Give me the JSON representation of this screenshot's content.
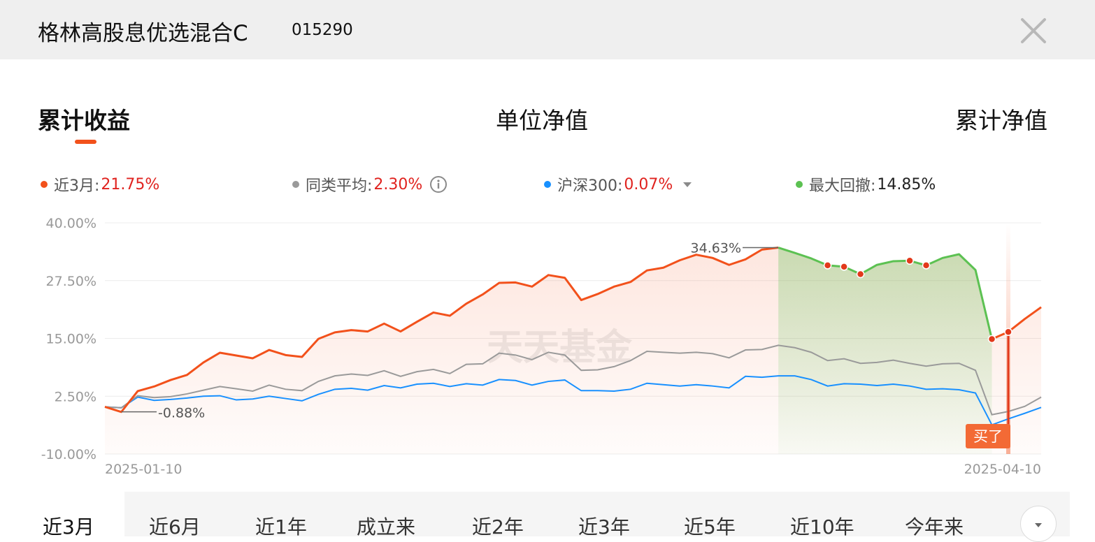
{
  "header": {
    "fund_name": "格林高股息优选混合C",
    "fund_code": "015290",
    "close_icon": "close-icon"
  },
  "tabs": [
    {
      "label": "累计收益",
      "active": true
    },
    {
      "label": "单位净值",
      "active": false
    },
    {
      "label": "累计净值",
      "active": false
    }
  ],
  "legend": {
    "fund": {
      "label": "近3月:",
      "value": "21.75%",
      "color": "#f2511b"
    },
    "peer": {
      "label": "同类平均:",
      "value": "2.30%",
      "color": "#9a9a9a",
      "icon": "info-icon"
    },
    "index": {
      "label": "沪深300:",
      "value": "0.07%",
      "color": "#1890ff",
      "icon": "caret-down-icon"
    },
    "drawdown": {
      "label": "最大回撤:",
      "value": "14.85%",
      "color": "#5cc152"
    }
  },
  "chart_data": {
    "type": "line",
    "watermark": "天天基金",
    "y_ticks": [
      "40.00%",
      "27.50%",
      "15.00%",
      "2.50%",
      "-10.00%"
    ],
    "ylim": [
      -10,
      40
    ],
    "x_labels": [
      "2025-01-10",
      "2025-04-10"
    ],
    "x_count": 58,
    "annotations": {
      "max": {
        "label": "34.63%",
        "index": 41,
        "value": 34.63
      },
      "min": {
        "label": "-0.88%",
        "index": 1,
        "value": -0.88
      }
    },
    "drawdown_range": [
      41,
      54
    ],
    "marker_indices": [
      44,
      45,
      46,
      49,
      50,
      54,
      55
    ],
    "buy_marker": {
      "label": "买了",
      "index": 55
    },
    "grid": true,
    "series": [
      {
        "name": "近3月",
        "color": "#f2511b",
        "values": [
          0.2,
          -0.9,
          3.6,
          4.6,
          6.0,
          7.1,
          9.8,
          11.9,
          11.3,
          10.7,
          12.5,
          11.4,
          11.0,
          14.9,
          16.3,
          16.8,
          16.5,
          18.2,
          16.5,
          18.6,
          20.6,
          19.9,
          22.5,
          24.5,
          27.0,
          27.1,
          26.2,
          28.7,
          28.1,
          23.3,
          24.6,
          26.2,
          27.2,
          29.7,
          30.3,
          31.9,
          33.1,
          32.4,
          30.9,
          32.1,
          34.2,
          34.63,
          33.5,
          32.3,
          30.8,
          30.5,
          28.9,
          30.9,
          31.7,
          31.8,
          30.8,
          32.4,
          33.2,
          29.8,
          14.85,
          16.4,
          19.2,
          21.75
        ]
      },
      {
        "name": "同类平均",
        "color": "#9a9a9a",
        "values": [
          0.2,
          0.0,
          2.6,
          2.2,
          2.4,
          3.0,
          3.8,
          4.6,
          4.1,
          3.6,
          4.9,
          4.0,
          3.7,
          5.7,
          6.9,
          7.3,
          7.0,
          8.0,
          6.8,
          7.8,
          8.3,
          7.4,
          9.4,
          9.5,
          11.8,
          11.4,
          10.4,
          12.0,
          11.4,
          8.1,
          8.2,
          8.9,
          10.2,
          12.2,
          12.0,
          11.8,
          12.0,
          11.7,
          10.8,
          12.5,
          12.6,
          13.5,
          13.0,
          12.0,
          10.2,
          10.6,
          9.6,
          9.8,
          10.3,
          9.6,
          9.0,
          9.5,
          9.6,
          8.1,
          -1.5,
          -0.8,
          0.3,
          2.3
        ]
      },
      {
        "name": "沪深300",
        "color": "#1890ff",
        "values": [
          0.2,
          0.0,
          2.3,
          1.6,
          1.8,
          2.1,
          2.5,
          2.6,
          1.7,
          1.9,
          2.5,
          2.0,
          1.5,
          2.9,
          4.0,
          4.2,
          3.8,
          4.8,
          4.3,
          5.1,
          5.3,
          4.6,
          5.2,
          4.9,
          6.1,
          5.9,
          4.9,
          5.7,
          6.0,
          3.7,
          3.7,
          3.6,
          4.0,
          5.3,
          5.0,
          4.7,
          5.0,
          4.7,
          4.3,
          6.8,
          6.6,
          6.9,
          6.9,
          6.1,
          4.7,
          5.2,
          5.1,
          4.8,
          5.1,
          4.7,
          4.0,
          4.1,
          3.9,
          3.2,
          -3.7,
          -2.4,
          -1.2,
          0.07
        ]
      }
    ]
  },
  "range_tabs": [
    {
      "label": "近3月",
      "active": true
    },
    {
      "label": "近6月",
      "active": false
    },
    {
      "label": "近1年",
      "active": false
    },
    {
      "label": "成立来",
      "active": false
    },
    {
      "label": "近2年",
      "active": false
    },
    {
      "label": "近3年",
      "active": false
    },
    {
      "label": "近5年",
      "active": false
    },
    {
      "label": "近10年",
      "active": false
    },
    {
      "label": "今年来",
      "active": false
    }
  ],
  "expand_icon": "chevron-down-icon"
}
